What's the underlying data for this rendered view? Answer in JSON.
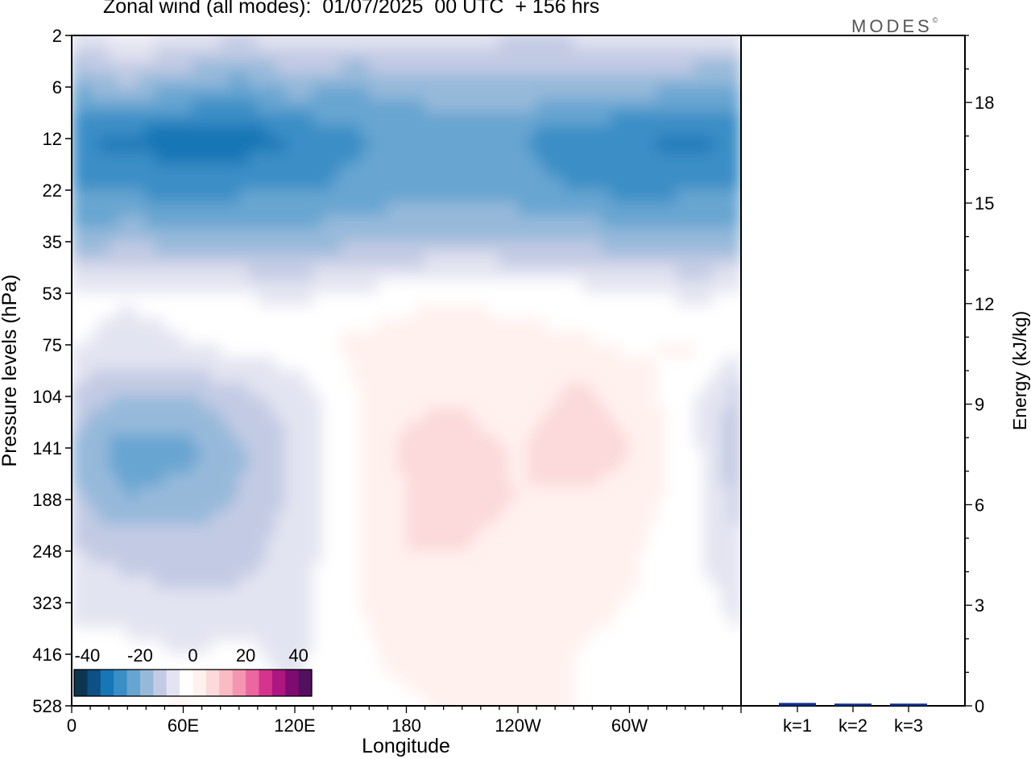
{
  "title": "Zonal wind (all modes):  01/07/2025  00 UTC  + 156 hrs",
  "brand": "MODES",
  "brand_mark": "©",
  "palette": [
    "#0c3550",
    "#0e4f84",
    "#1676b6",
    "#3a8ec6",
    "#67a5d1",
    "#96b9da",
    "#c3cbe4",
    "#e3e4f1",
    "#ffffff",
    "#fff1ee",
    "#fcd9da",
    "#f9bcc4",
    "#f496b0",
    "#ec66a0",
    "#d6338f",
    "#ad1580",
    "#7f0b72",
    "#52105f"
  ],
  "chart_data": [
    {
      "type": "heatmap",
      "title": "Zonal wind (all modes):  01/07/2025  00 UTC  + 156 hrs",
      "xlabel": "Longitude",
      "ylabel": "Pressure levels (hPa)",
      "x_ticks": [
        "0",
        "60E",
        "120E",
        "180",
        "120W",
        "60W"
      ],
      "x_tick_degrees_east": [
        0,
        60,
        120,
        180,
        240,
        300
      ],
      "xlim": [
        0,
        360
      ],
      "y_ticks": [
        "2",
        "6",
        "12",
        "22",
        "35",
        "53",
        "75",
        "104",
        "141",
        "188",
        "248",
        "323",
        "416",
        "528"
      ],
      "colorbar": {
        "ticks": [
          "-40",
          "-20",
          "0",
          "20",
          "40"
        ],
        "range": [
          -45,
          45
        ],
        "step": 5
      },
      "x": [
        0,
        30,
        60,
        90,
        120,
        150,
        180,
        210,
        240,
        270,
        300,
        330,
        360
      ],
      "y": [
        "2",
        "6",
        "12",
        "22",
        "35",
        "53",
        "75",
        "104",
        "141",
        "188",
        "248",
        "323",
        "416",
        "528"
      ],
      "values": [
        [
          -8,
          -4,
          -6,
          -10,
          -6,
          -8,
          -8,
          -7,
          -10,
          -9,
          -5,
          -8,
          -8
        ],
        [
          -20,
          -16,
          -20,
          -22,
          -18,
          -20,
          -18,
          -17,
          -16,
          -18,
          -18,
          -19,
          -20
        ],
        [
          -30,
          -31,
          -33,
          -33,
          -30,
          -26,
          -24,
          -24,
          -25,
          -28,
          -30,
          -31,
          -30
        ],
        [
          -26,
          -26,
          -27,
          -26,
          -26,
          -24,
          -22,
          -22,
          -23,
          -25,
          -27,
          -26,
          -26
        ],
        [
          -18,
          -16,
          -17,
          -18,
          -18,
          -16,
          -15,
          -15,
          -15,
          -16,
          -17,
          -17,
          -18
        ],
        [
          -5,
          -4,
          -4,
          -5,
          -6,
          -5,
          -2,
          -1,
          -2,
          -3,
          -5,
          -6,
          -5
        ],
        [
          -4,
          -7,
          -5,
          -3,
          -2,
          1,
          3,
          3,
          2,
          1,
          -1,
          1,
          -4
        ],
        [
          -12,
          -15,
          -15,
          -12,
          -8,
          -1,
          4,
          4,
          0,
          7,
          3,
          -3,
          -12
        ],
        [
          -16,
          -23,
          -22,
          -16,
          -9,
          -1,
          6,
          8,
          4,
          10,
          5,
          -2,
          -14
        ],
        [
          -14,
          -20,
          -18,
          -15,
          -9,
          -1,
          5,
          7,
          5,
          4,
          3,
          -2,
          -12
        ],
        [
          -10,
          -12,
          -13,
          -12,
          -8,
          -1,
          5,
          5,
          3,
          2,
          1,
          -3,
          -9
        ],
        [
          -6,
          -8,
          -9,
          -9,
          -7,
          -1,
          4,
          3,
          2,
          1,
          0,
          -3,
          -6
        ],
        [
          -4,
          -3,
          -5,
          -4,
          -6,
          -2,
          2,
          2,
          1,
          0,
          -1,
          -3,
          -4
        ],
        [
          -5,
          -2,
          1,
          -3,
          -5,
          -2,
          -1,
          1,
          1,
          0,
          -1,
          -3,
          -5
        ]
      ]
    },
    {
      "type": "bar",
      "title": "",
      "xlabel": "",
      "ylabel": "Energy (kJ/kg)",
      "categories": [
        "k=1",
        "k=2",
        "k=3"
      ],
      "values": [
        0.05,
        0.03,
        0.03
      ],
      "ylim": [
        0,
        20
      ],
      "y_ticks": [
        "0",
        "3",
        "6",
        "9",
        "12",
        "15",
        "18"
      ],
      "y_tick_values": [
        0,
        3,
        6,
        9,
        12,
        15,
        18
      ],
      "bar_color": "#0b2f8a"
    }
  ]
}
